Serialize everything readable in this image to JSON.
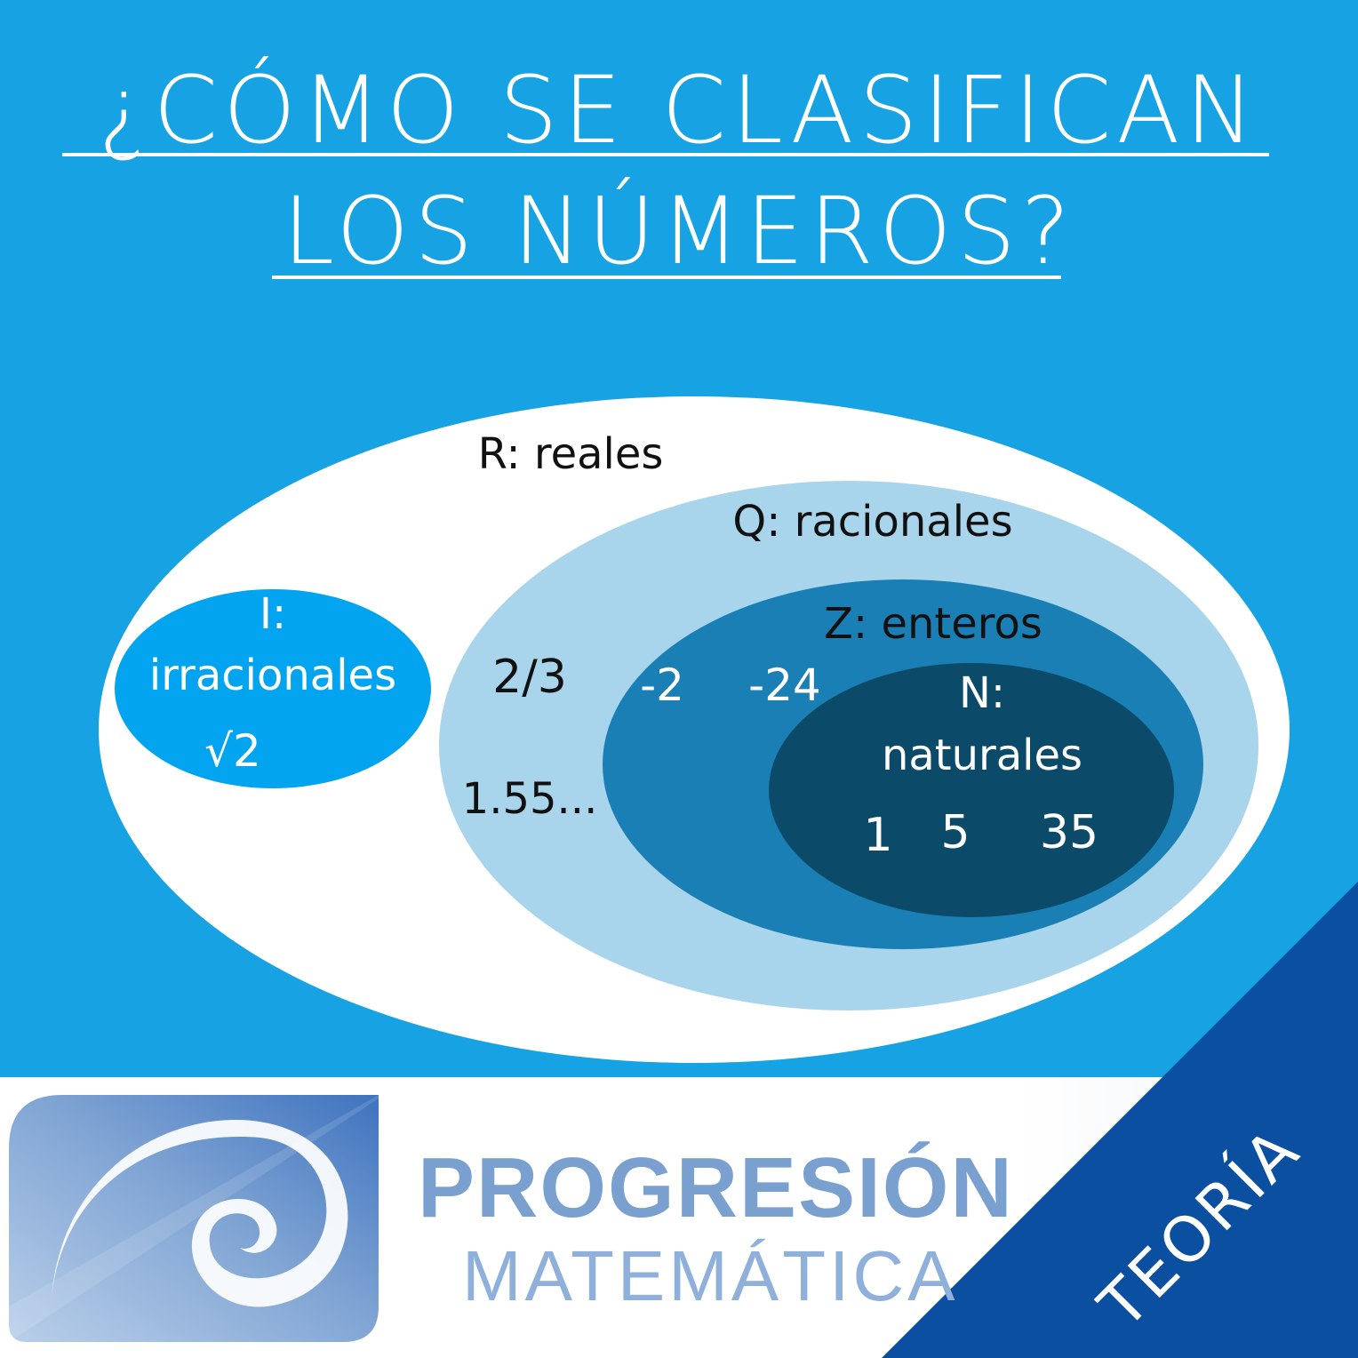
{
  "title": {
    "line1": "¿CÓMO SE CLASIFICAN",
    "line2": "LOS NÚMEROS?"
  },
  "sets": {
    "reales": "R: reales",
    "racionales": "Q: racionales",
    "enteros": "Z: enteros",
    "naturales_1": "N:",
    "naturales_2": "naturales",
    "irracionales_1": "I:",
    "irracionales_2": "irracionales"
  },
  "examples": {
    "irracionales": "√2",
    "racionales": [
      "2/3",
      "1.55..."
    ],
    "enteros": [
      "-2",
      "-24"
    ],
    "naturales": [
      "1",
      "5",
      "35"
    ]
  },
  "brand": {
    "line1": "PROGRESIÓN",
    "line2": "MATEMÁTICA",
    "tag": "TEORÍA"
  },
  "colors": {
    "background": "#16a2e3",
    "reales": "#ffffff",
    "racionales": "#a8d5ec",
    "enteros": "#1a7fb4",
    "naturales": "#0b4a68",
    "irracionales": "#03a4ef",
    "corner": "#0a4fa0"
  }
}
